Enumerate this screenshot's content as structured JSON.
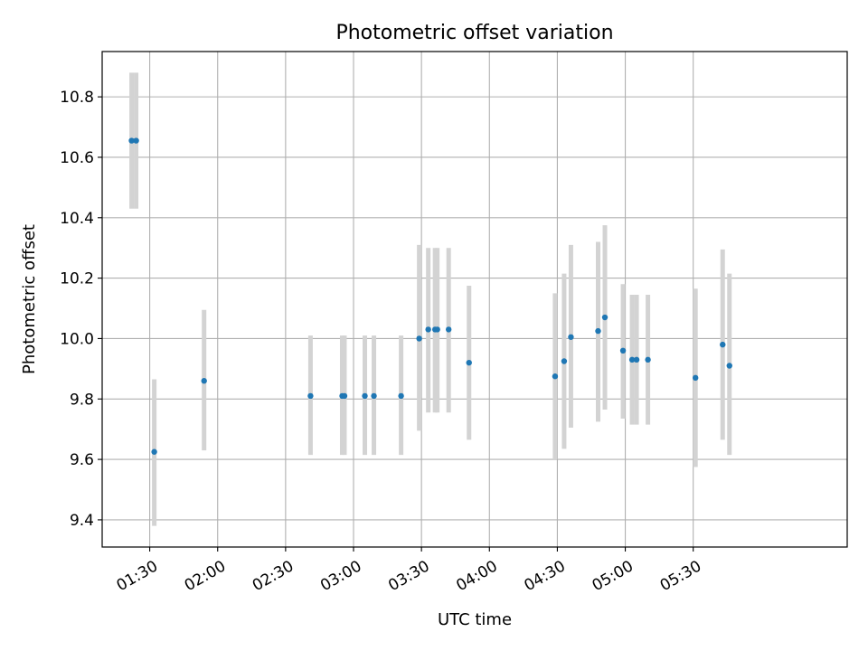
{
  "chart_data": {
    "type": "scatter",
    "title": "Photometric offset variation",
    "xlabel": "UTC time",
    "ylabel": "Photometric offset",
    "x_unit": "UTC hh:mm",
    "xlim": [
      "01:09",
      "06:38"
    ],
    "ylim": [
      9.31,
      10.95
    ],
    "x_ticks": [
      "01:30",
      "02:00",
      "02:30",
      "03:00",
      "03:30",
      "04:00",
      "04:30",
      "05:00",
      "05:30"
    ],
    "y_ticks": [
      9.4,
      9.6,
      9.8,
      10.0,
      10.2,
      10.4,
      10.6,
      10.8
    ],
    "y_tick_labels": [
      "9.4",
      "9.6",
      "9.8",
      "10.0",
      "10.2",
      "10.4",
      "10.6",
      "10.8"
    ],
    "grid": true,
    "legend": "none",
    "colors": {
      "marker": "#1f77b4",
      "errorbar": "#d3d3d3",
      "grid": "#b0b0b0"
    },
    "points": [
      {
        "x": "01:22",
        "y": 10.655,
        "lo": 10.43,
        "hi": 10.88
      },
      {
        "x": "01:24",
        "y": 10.655,
        "lo": 10.43,
        "hi": 10.88
      },
      {
        "x": "01:32",
        "y": 9.625,
        "lo": 9.38,
        "hi": 9.865
      },
      {
        "x": "01:54",
        "y": 9.86,
        "lo": 9.63,
        "hi": 10.095
      },
      {
        "x": "02:41",
        "y": 9.81,
        "lo": 9.615,
        "hi": 10.01
      },
      {
        "x": "02:55",
        "y": 9.81,
        "lo": 9.615,
        "hi": 10.01
      },
      {
        "x": "02:56",
        "y": 9.81,
        "lo": 9.615,
        "hi": 10.01
      },
      {
        "x": "03:05",
        "y": 9.81,
        "lo": 9.615,
        "hi": 10.01
      },
      {
        "x": "03:09",
        "y": 9.81,
        "lo": 9.615,
        "hi": 10.01
      },
      {
        "x": "03:21",
        "y": 9.81,
        "lo": 9.615,
        "hi": 10.01
      },
      {
        "x": "03:29",
        "y": 10.0,
        "lo": 9.695,
        "hi": 10.31
      },
      {
        "x": "03:33",
        "y": 10.03,
        "lo": 9.755,
        "hi": 10.3
      },
      {
        "x": "03:36",
        "y": 10.03,
        "lo": 9.755,
        "hi": 10.3
      },
      {
        "x": "03:37",
        "y": 10.03,
        "lo": 9.755,
        "hi": 10.3
      },
      {
        "x": "03:42",
        "y": 10.03,
        "lo": 9.755,
        "hi": 10.3
      },
      {
        "x": "03:51",
        "y": 9.92,
        "lo": 9.665,
        "hi": 10.175
      },
      {
        "x": "04:29",
        "y": 9.875,
        "lo": 9.6,
        "hi": 10.15
      },
      {
        "x": "04:33",
        "y": 9.925,
        "lo": 9.635,
        "hi": 10.215
      },
      {
        "x": "04:36",
        "y": 10.005,
        "lo": 9.705,
        "hi": 10.31
      },
      {
        "x": "04:48",
        "y": 10.025,
        "lo": 9.725,
        "hi": 10.32
      },
      {
        "x": "04:51",
        "y": 10.07,
        "lo": 9.765,
        "hi": 10.375
      },
      {
        "x": "04:59",
        "y": 9.96,
        "lo": 9.735,
        "hi": 10.18
      },
      {
        "x": "05:03",
        "y": 9.93,
        "lo": 9.715,
        "hi": 10.145
      },
      {
        "x": "05:05",
        "y": 9.93,
        "lo": 9.715,
        "hi": 10.145
      },
      {
        "x": "05:10",
        "y": 9.93,
        "lo": 9.715,
        "hi": 10.145
      },
      {
        "x": "05:31",
        "y": 9.87,
        "lo": 9.575,
        "hi": 10.165
      },
      {
        "x": "05:43",
        "y": 9.98,
        "lo": 9.665,
        "hi": 10.295
      },
      {
        "x": "05:46",
        "y": 9.91,
        "lo": 9.615,
        "hi": 10.215
      }
    ]
  }
}
